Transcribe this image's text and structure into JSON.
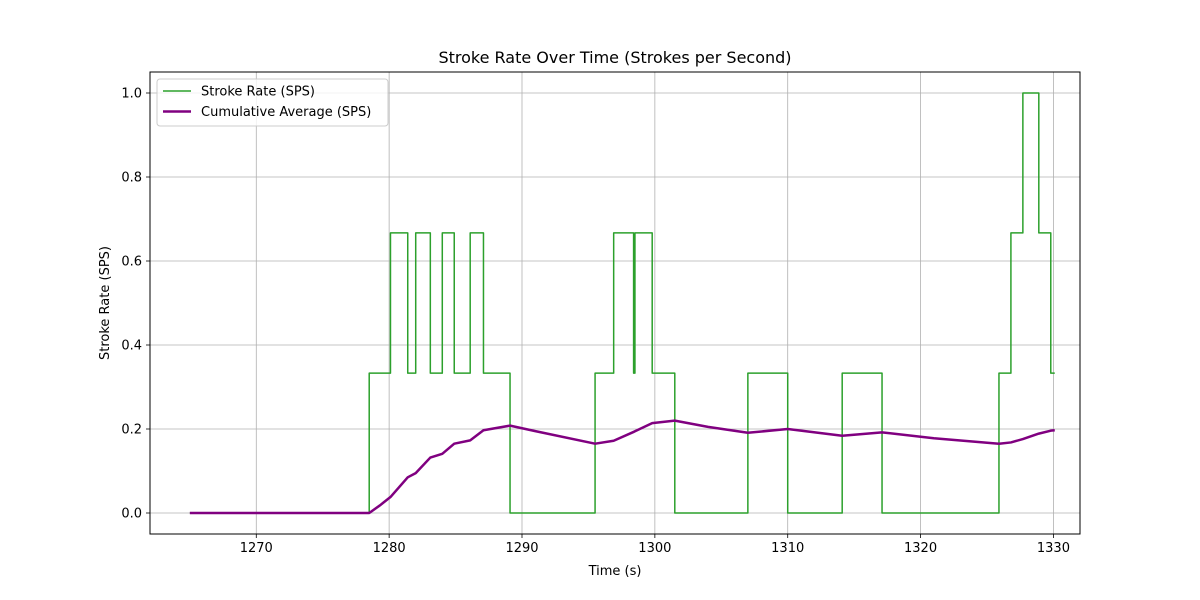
{
  "chart_data": {
    "type": "line",
    "title": "Stroke Rate Over Time (Strokes per Second)",
    "xlabel": "Time (s)",
    "ylabel": "Stroke Rate (SPS)",
    "xlim": [
      1262,
      1332
    ],
    "ylim": [
      -0.05,
      1.05
    ],
    "x_ticks": [
      1270,
      1280,
      1290,
      1300,
      1310,
      1320,
      1330
    ],
    "y_ticks": [
      0.0,
      0.2,
      0.4,
      0.6,
      0.8,
      1.0
    ],
    "x_tick_labels": [
      "1270",
      "1280",
      "1290",
      "1300",
      "1310",
      "1320",
      "1330"
    ],
    "y_tick_labels": [
      "0.0",
      "0.2",
      "0.4",
      "0.6",
      "0.8",
      "1.0"
    ],
    "grid": true,
    "legend_position": "top-left",
    "legend": [
      "Stroke Rate (SPS)",
      "Cumulative Average (SPS)"
    ],
    "series": [
      {
        "name": "Stroke Rate (SPS)",
        "style": "step",
        "color": "#2ca02c",
        "x": [
          1265.0,
          1278.5,
          1278.5,
          1280.1,
          1280.1,
          1281.4,
          1281.4,
          1282.0,
          1282.0,
          1283.1,
          1283.1,
          1284.0,
          1284.0,
          1284.9,
          1284.9,
          1286.1,
          1286.1,
          1287.1,
          1287.1,
          1289.1,
          1289.1,
          1295.5,
          1295.5,
          1296.9,
          1296.9,
          1298.4,
          1298.4,
          1298.5,
          1298.5,
          1299.8,
          1299.8,
          1301.5,
          1301.5,
          1307.0,
          1307.0,
          1310.0,
          1310.0,
          1314.1,
          1314.1,
          1317.1,
          1317.1,
          1325.9,
          1325.9,
          1326.8,
          1326.8,
          1327.7,
          1327.7,
          1328.9,
          1328.9,
          1329.8,
          1329.8,
          1330.1
        ],
        "y": [
          0.0,
          0.0,
          0.333,
          0.333,
          0.667,
          0.667,
          0.333,
          0.333,
          0.667,
          0.667,
          0.333,
          0.333,
          0.667,
          0.667,
          0.333,
          0.333,
          0.667,
          0.667,
          0.333,
          0.333,
          0.0,
          0.0,
          0.333,
          0.333,
          0.667,
          0.667,
          0.333,
          0.333,
          0.667,
          0.667,
          0.333,
          0.333,
          0.0,
          0.0,
          0.333,
          0.333,
          0.0,
          0.0,
          0.333,
          0.333,
          0.0,
          0.0,
          0.333,
          0.333,
          0.667,
          0.667,
          1.0,
          1.0,
          0.667,
          0.667,
          0.333,
          0.333
        ]
      },
      {
        "name": "Cumulative Average (SPS)",
        "style": "line",
        "color": "#800080",
        "x": [
          1265.0,
          1278.5,
          1279.3,
          1280.1,
          1281.4,
          1282.0,
          1283.1,
          1284.0,
          1284.9,
          1286.1,
          1287.1,
          1289.1,
          1291.0,
          1295.5,
          1296.9,
          1298.4,
          1299.8,
          1301.5,
          1304.0,
          1307.0,
          1310.0,
          1314.1,
          1317.1,
          1321.0,
          1325.9,
          1326.8,
          1327.7,
          1328.9,
          1329.8,
          1330.1
        ],
        "y": [
          0.0,
          0.0,
          0.018,
          0.038,
          0.085,
          0.095,
          0.132,
          0.141,
          0.165,
          0.173,
          0.197,
          0.208,
          0.195,
          0.165,
          0.172,
          0.193,
          0.214,
          0.22,
          0.205,
          0.191,
          0.2,
          0.184,
          0.192,
          0.178,
          0.165,
          0.168,
          0.176,
          0.189,
          0.196,
          0.197
        ]
      }
    ]
  }
}
